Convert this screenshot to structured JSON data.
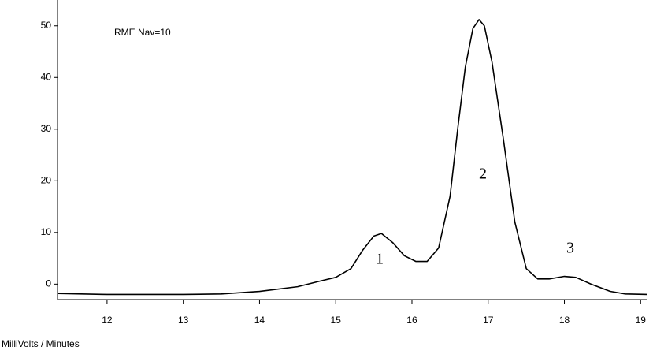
{
  "chart_data": {
    "type": "line",
    "axis_label": "MilliVolts / Minutes",
    "annotations": [
      "RME Nav=10",
      "1",
      "2",
      "3"
    ],
    "x": [
      11.35,
      12,
      13,
      13.5,
      14,
      14.5,
      14.8,
      15.0,
      15.2,
      15.35,
      15.5,
      15.6,
      15.75,
      15.9,
      16.05,
      16.2,
      16.35,
      16.5,
      16.6,
      16.7,
      16.8,
      16.88,
      16.95,
      17.05,
      17.2,
      17.35,
      17.5,
      17.65,
      17.8,
      18.0,
      18.15,
      18.35,
      18.6,
      18.8,
      19.09
    ],
    "series": [
      {
        "color": "#000000",
        "values": [
          -1.8,
          -2.0,
          -2.0,
          -1.9,
          -1.4,
          -0.5,
          0.6,
          1.3,
          3,
          6.5,
          9.3,
          9.8,
          8,
          5.5,
          4.4,
          4.4,
          7,
          17,
          30,
          42,
          49.5,
          51.2,
          50,
          43,
          28,
          12,
          3,
          1.0,
          1.0,
          1.5,
          1.3,
          0,
          -1.4,
          -1.9,
          -2.0
        ]
      }
    ],
    "xlim": [
      11.35,
      19.09
    ],
    "xticks": [
      12,
      13,
      14,
      15,
      16,
      17,
      18,
      19
    ],
    "ylim": [
      -3,
      55
    ],
    "yticks": [
      0,
      10,
      20,
      30,
      40,
      50
    ]
  }
}
